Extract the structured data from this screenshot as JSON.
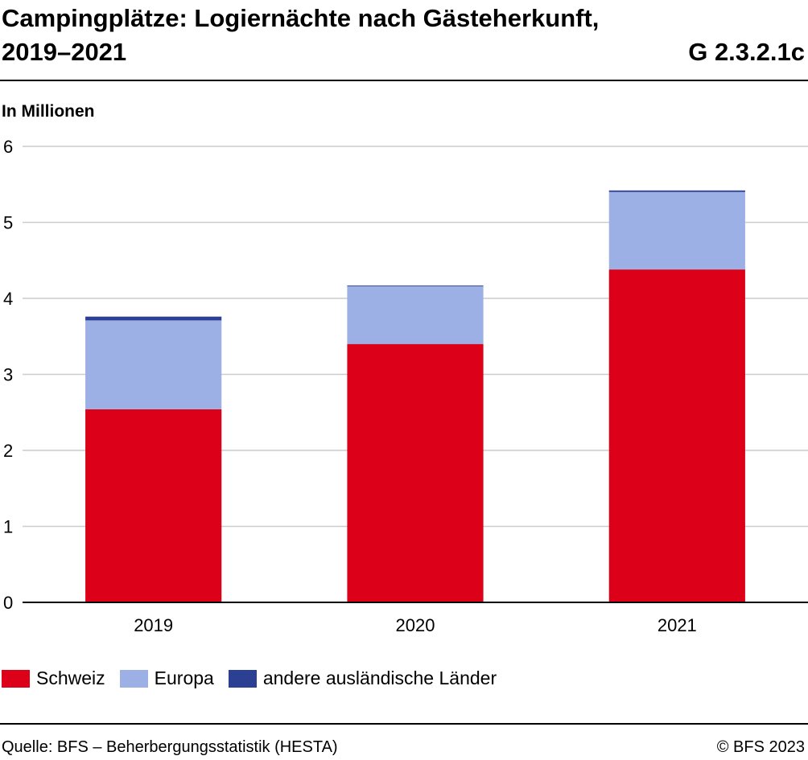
{
  "header": {
    "title": "Campingplätze: Logiernächte nach Gästeherkunft,\n2019–2021",
    "code": "G 2.3.2.1c"
  },
  "footer": {
    "source": "Quelle: BFS – Beherbergungsstatistik (HESTA)",
    "copyright": "© BFS 2023"
  },
  "chart_data": {
    "type": "bar",
    "stacked": true,
    "ylabel": "In Millionen",
    "ylim": [
      0,
      6
    ],
    "yticks": [
      "0",
      "1",
      "2",
      "3",
      "4",
      "5",
      "6"
    ],
    "grid": true,
    "legend_position": "bottom",
    "categories": [
      "2019",
      "2020",
      "2021"
    ],
    "series": [
      {
        "name": "Schweiz",
        "color": "#dc0018",
        "values": [
          2.54,
          3.4,
          4.38
        ]
      },
      {
        "name": "Europa",
        "color": "#9cb0e6",
        "values": [
          1.17,
          0.76,
          1.02
        ]
      },
      {
        "name": "andere ausländische Länder",
        "color": "#2b3f93",
        "values": [
          0.05,
          0.01,
          0.02
        ]
      }
    ]
  }
}
